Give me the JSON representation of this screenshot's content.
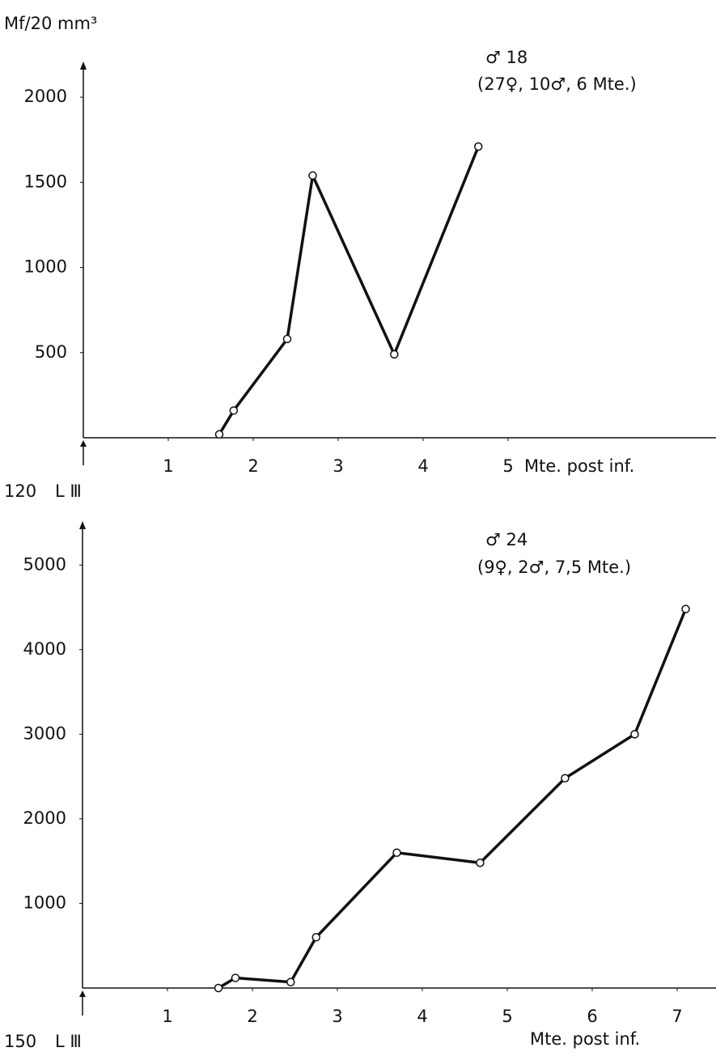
{
  "chart_data": [
    {
      "type": "line",
      "y_label": "Mf/20 mm³",
      "annotation": [
        "♂ 18",
        "(27♀, 10♂, 6 Mte.)"
      ],
      "origin_labels": [
        "120",
        "L Ⅲ"
      ],
      "x_label": "Mte. post inf.",
      "x": [
        1.6,
        1.77,
        2.4,
        2.7,
        3.66,
        4.65
      ],
      "values": [
        20,
        160,
        580,
        1540,
        490,
        1710
      ],
      "color": "#111111",
      "xlim": [
        0,
        7.4
      ],
      "ylim": [
        0,
        2200
      ],
      "xticks": [
        1,
        2,
        3,
        4,
        5
      ],
      "yticks": [
        500,
        1000,
        1500,
        2000
      ],
      "grid": false
    },
    {
      "type": "line",
      "annotation": [
        "♂ 24",
        "(9♀, 2♂, 7,5 Mte.)"
      ],
      "origin_labels": [
        "150",
        "L Ⅲ"
      ],
      "x_label": "Mte. post inf.",
      "x": [
        1.6,
        1.8,
        2.45,
        2.75,
        3.7,
        4.68,
        5.68,
        6.5,
        7.1
      ],
      "values": [
        0,
        120,
        70,
        600,
        1600,
        1480,
        2480,
        3000,
        4480
      ],
      "color": "#111111",
      "xlim": [
        0,
        7.4
      ],
      "ylim": [
        0,
        5500
      ],
      "xticks": [
        1,
        2,
        3,
        4,
        5,
        6,
        7
      ],
      "yticks": [
        1000,
        2000,
        3000,
        4000,
        5000
      ],
      "grid": false
    }
  ]
}
